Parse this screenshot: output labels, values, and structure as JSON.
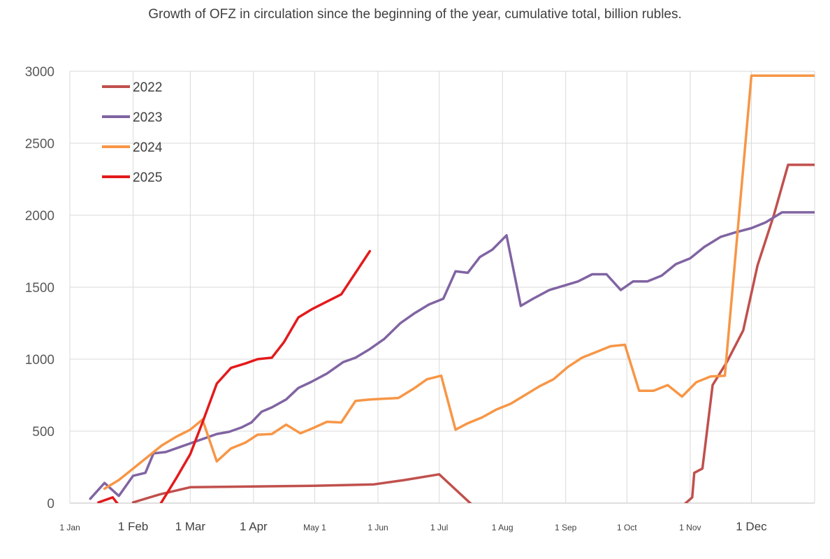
{
  "chart_data": {
    "type": "line",
    "title": "Growth of OFZ in circulation since the beginning of the year, cumulative total, billion rubles.",
    "xlabel": "",
    "ylabel": "",
    "ylim": [
      0,
      3000
    ],
    "yticks": [
      "0",
      "500",
      "1000",
      "1500",
      "2000",
      "2500",
      "3000"
    ],
    "xticks": [
      {
        "label": "1 Jan",
        "day": 1
      },
      {
        "label": "1 Feb",
        "day": 32
      },
      {
        "label": "1 Mar",
        "day": 60
      },
      {
        "label": "1 Apr",
        "day": 91
      },
      {
        "label": "May 1",
        "day": 121
      },
      {
        "label": "1 Jun",
        "day": 152
      },
      {
        "label": "1 Jul",
        "day": 182
      },
      {
        "label": "1 Aug",
        "day": 213
      },
      {
        "label": "1 Sep",
        "day": 244
      },
      {
        "label": "1 Oct",
        "day": 274
      },
      {
        "label": "1 Nov",
        "day": 305
      },
      {
        "label": "1 Dec",
        "day": 335
      }
    ],
    "xlim": [
      1,
      366
    ],
    "grid": true,
    "legend_position": "top-left",
    "series": [
      {
        "name": "2022",
        "color": "#c0504d",
        "points": [
          [
            32,
            5
          ],
          [
            45,
            60
          ],
          [
            60,
            110
          ],
          [
            90,
            115
          ],
          [
            120,
            120
          ],
          [
            150,
            130
          ],
          [
            165,
            160
          ],
          [
            182,
            200
          ],
          [
            198,
            -10
          ],
          [
            302,
            -10
          ],
          [
            306,
            40
          ],
          [
            307,
            210
          ],
          [
            311,
            240
          ],
          [
            316,
            820
          ],
          [
            323,
            980
          ],
          [
            331,
            1200
          ],
          [
            338,
            1650
          ],
          [
            346,
            2000
          ],
          [
            353,
            2350
          ],
          [
            366,
            2350
          ]
        ]
      },
      {
        "name": "2023",
        "color": "#8064a2",
        "points": [
          [
            11,
            30
          ],
          [
            18,
            140
          ],
          [
            25,
            50
          ],
          [
            32,
            190
          ],
          [
            38,
            210
          ],
          [
            42,
            345
          ],
          [
            48,
            355
          ],
          [
            55,
            390
          ],
          [
            61,
            420
          ],
          [
            67,
            450
          ],
          [
            73,
            480
          ],
          [
            79,
            495
          ],
          [
            85,
            525
          ],
          [
            90,
            560
          ],
          [
            95,
            635
          ],
          [
            100,
            665
          ],
          [
            107,
            720
          ],
          [
            113,
            800
          ],
          [
            119,
            840
          ],
          [
            127,
            900
          ],
          [
            135,
            980
          ],
          [
            141,
            1010
          ],
          [
            148,
            1070
          ],
          [
            155,
            1140
          ],
          [
            163,
            1250
          ],
          [
            170,
            1320
          ],
          [
            177,
            1380
          ],
          [
            184,
            1420
          ],
          [
            190,
            1610
          ],
          [
            196,
            1600
          ],
          [
            202,
            1710
          ],
          [
            208,
            1760
          ],
          [
            215,
            1860
          ],
          [
            222,
            1370
          ],
          [
            228,
            1420
          ],
          [
            236,
            1480
          ],
          [
            243,
            1510
          ],
          [
            250,
            1540
          ],
          [
            257,
            1590
          ],
          [
            264,
            1590
          ],
          [
            271,
            1480
          ],
          [
            277,
            1540
          ],
          [
            284,
            1540
          ],
          [
            291,
            1580
          ],
          [
            298,
            1660
          ],
          [
            305,
            1700
          ],
          [
            312,
            1780
          ],
          [
            320,
            1850
          ],
          [
            327,
            1880
          ],
          [
            335,
            1910
          ],
          [
            342,
            1950
          ],
          [
            350,
            2020
          ],
          [
            366,
            2020
          ]
        ]
      },
      {
        "name": "2024",
        "color": "#f79646",
        "points": [
          [
            18,
            100
          ],
          [
            25,
            160
          ],
          [
            32,
            240
          ],
          [
            46,
            400
          ],
          [
            53,
            460
          ],
          [
            60,
            510
          ],
          [
            66,
            580
          ],
          [
            73,
            290
          ],
          [
            80,
            380
          ],
          [
            87,
            420
          ],
          [
            93,
            475
          ],
          [
            100,
            480
          ],
          [
            107,
            545
          ],
          [
            114,
            485
          ],
          [
            120,
            520
          ],
          [
            127,
            565
          ],
          [
            134,
            560
          ],
          [
            141,
            710
          ],
          [
            148,
            720
          ],
          [
            155,
            725
          ],
          [
            162,
            730
          ],
          [
            170,
            800
          ],
          [
            176,
            860
          ],
          [
            183,
            885
          ],
          [
            190,
            510
          ],
          [
            196,
            555
          ],
          [
            203,
            595
          ],
          [
            210,
            650
          ],
          [
            217,
            690
          ],
          [
            224,
            750
          ],
          [
            231,
            810
          ],
          [
            238,
            860
          ],
          [
            245,
            945
          ],
          [
            252,
            1010
          ],
          [
            259,
            1050
          ],
          [
            266,
            1090
          ],
          [
            273,
            1100
          ],
          [
            280,
            780
          ],
          [
            287,
            780
          ],
          [
            294,
            820
          ],
          [
            301,
            740
          ],
          [
            308,
            840
          ],
          [
            315,
            880
          ],
          [
            322,
            885
          ],
          [
            335,
            2970
          ],
          [
            366,
            2970
          ]
        ]
      },
      {
        "name": "2025",
        "color": "#e31a1c",
        "points": [
          [
            15,
            5
          ],
          [
            22,
            40
          ],
          [
            25,
            -15
          ],
          [
            45,
            -15
          ],
          [
            53,
            170
          ],
          [
            60,
            340
          ],
          [
            66,
            560
          ],
          [
            73,
            830
          ],
          [
            80,
            940
          ],
          [
            87,
            970
          ],
          [
            93,
            1000
          ],
          [
            100,
            1010
          ],
          [
            106,
            1120
          ],
          [
            113,
            1290
          ],
          [
            120,
            1350
          ],
          [
            127,
            1400
          ],
          [
            134,
            1450
          ],
          [
            141,
            1600
          ],
          [
            148,
            1750
          ]
        ]
      }
    ]
  }
}
